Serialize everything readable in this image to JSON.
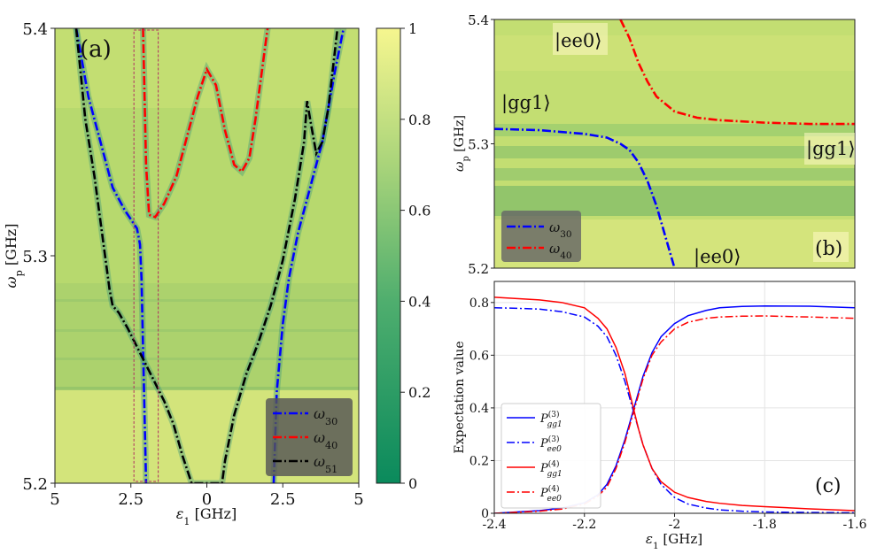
{
  "chart_data": [
    {
      "panel": "a",
      "type": "heatmap",
      "label": "(a)",
      "xlabel": "ε1 [GHz]",
      "ylabel": "ωp [GHz]",
      "xlim": [
        -5,
        5
      ],
      "ylim": [
        5.2,
        5.4
      ],
      "xticks": [
        -5,
        -2.5,
        0,
        2.5,
        5
      ],
      "xtick_labels": [
        "5",
        "2.5",
        "0",
        "2.5",
        "5"
      ],
      "yticks": [
        5.2,
        5.3,
        5.4
      ],
      "ytick_labels": [
        "5.2",
        "5.3",
        "5.4"
      ],
      "colorbar": {
        "range": [
          0,
          1
        ],
        "ticks": [
          0,
          0.2,
          0.4,
          0.6,
          0.8,
          1
        ],
        "tick_labels": [
          "0",
          "0.2",
          "0.4",
          "0.6",
          "0.8",
          "1"
        ],
        "color_low": "#0a8a5c",
        "color_high": "#f6f68f"
      },
      "highlight_box": {
        "x_range": [
          -2.4,
          -1.6
        ],
        "y_range": [
          5.2,
          5.4
        ]
      },
      "series": [
        {
          "name": "ω30",
          "color": "#0000ff",
          "x": [
            -4.3,
            -3.9,
            -3.5,
            -3.1,
            -2.7,
            -2.3,
            -2.2,
            -2.15,
            -2.1,
            -2.05,
            -2.0
          ],
          "y": [
            5.4,
            5.37,
            5.35,
            5.33,
            5.32,
            5.312,
            5.305,
            5.29,
            5.26,
            5.23,
            5.2
          ]
        },
        {
          "name": "ω30",
          "color": "#0000ff",
          "x": [
            2.2,
            2.3,
            2.5,
            2.7,
            3.0,
            3.4,
            3.8,
            4.2,
            4.5
          ],
          "y": [
            5.2,
            5.24,
            5.27,
            5.29,
            5.31,
            5.33,
            5.35,
            5.38,
            5.4
          ]
        },
        {
          "name": "ω40",
          "color": "#ff0000",
          "x": [
            -2.1,
            -2.05,
            -2.0,
            -1.9,
            -1.7,
            -1.4,
            -1.0,
            -0.6,
            -0.3,
            0.0,
            0.3,
            0.6,
            0.9,
            1.15,
            1.4,
            1.6,
            1.8,
            2.0
          ],
          "y": [
            5.4,
            5.37,
            5.34,
            5.318,
            5.317,
            5.323,
            5.335,
            5.355,
            5.37,
            5.382,
            5.375,
            5.355,
            5.34,
            5.337,
            5.343,
            5.36,
            5.38,
            5.4
          ]
        },
        {
          "name": "ω51",
          "color": "#000000",
          "x": [
            -4.3,
            -4.0,
            -3.7,
            -3.4,
            -3.2,
            -3.1,
            -2.9,
            -2.6,
            -2.3,
            -2.0,
            -1.7,
            -1.4,
            -1.1,
            -0.8,
            -0.6,
            -0.5,
            0.5,
            0.6,
            0.9,
            1.3,
            1.7,
            2.1,
            2.5,
            2.9,
            3.2,
            3.3,
            3.4,
            3.6,
            3.8,
            4.0,
            4.3
          ],
          "y": [
            5.4,
            5.36,
            5.335,
            5.305,
            5.285,
            5.278,
            5.275,
            5.268,
            5.26,
            5.252,
            5.244,
            5.236,
            5.226,
            5.212,
            5.204,
            5.2,
            5.2,
            5.21,
            5.23,
            5.248,
            5.262,
            5.278,
            5.298,
            5.325,
            5.35,
            5.368,
            5.36,
            5.345,
            5.35,
            5.365,
            5.4
          ]
        }
      ]
    },
    {
      "panel": "b",
      "type": "heatmap",
      "label": "(b)",
      "ylabel": "ωp [GHz]",
      "xlim": [
        -2.4,
        -1.6
      ],
      "ylim": [
        5.2,
        5.4
      ],
      "yticks": [
        5.2,
        5.3,
        5.4
      ],
      "ytick_labels": [
        "5.2",
        "5.3",
        "5.4"
      ],
      "annotations": [
        "|ee0⟩",
        "|gg1⟩",
        "|gg1⟩",
        "|ee0⟩"
      ],
      "series": [
        {
          "name": "ω30",
          "color": "#0000ff",
          "x": [
            -2.4,
            -2.3,
            -2.2,
            -2.15,
            -2.12,
            -2.1,
            -2.08,
            -2.06,
            -2.04,
            -2.02,
            -2.0
          ],
          "y": [
            5.312,
            5.311,
            5.308,
            5.305,
            5.3,
            5.295,
            5.285,
            5.27,
            5.25,
            5.225,
            5.2
          ]
        },
        {
          "name": "ω40",
          "color": "#ff0000",
          "x": [
            -2.12,
            -2.1,
            -2.08,
            -2.06,
            -2.04,
            -2.0,
            -1.95,
            -1.9,
            -1.8,
            -1.7,
            -1.6
          ],
          "y": [
            5.4,
            5.385,
            5.365,
            5.35,
            5.338,
            5.326,
            5.321,
            5.319,
            5.317,
            5.316,
            5.316
          ]
        }
      ]
    },
    {
      "panel": "c",
      "type": "line",
      "label": "(c)",
      "xlabel": "ε1 [GHz]",
      "ylabel": "Expectation value",
      "xlim": [
        -2.4,
        -1.6
      ],
      "ylim": [
        0,
        0.88
      ],
      "xticks": [
        -2.4,
        -2.2,
        -2.0,
        -1.8,
        -1.6
      ],
      "xtick_labels": [
        "-2.4",
        "-2.2",
        "-2",
        "-1.8",
        "-1.6"
      ],
      "yticks": [
        0,
        0.2,
        0.4,
        0.6,
        0.8
      ],
      "ytick_labels": [
        "0",
        "0.2",
        "0.4",
        "0.6",
        "0.8"
      ],
      "x": [
        -2.4,
        -2.35,
        -2.3,
        -2.25,
        -2.2,
        -2.17,
        -2.15,
        -2.13,
        -2.11,
        -2.1,
        -2.09,
        -2.08,
        -2.07,
        -2.05,
        -2.03,
        -2.0,
        -1.97,
        -1.93,
        -1.9,
        -1.85,
        -1.8,
        -1.7,
        -1.6
      ],
      "series": [
        {
          "name": "P(3) gg1",
          "color": "#0000ff",
          "dash": "solid",
          "values": [
            0.0,
            0.005,
            0.01,
            0.02,
            0.04,
            0.07,
            0.11,
            0.18,
            0.28,
            0.34,
            0.4,
            0.46,
            0.52,
            0.61,
            0.67,
            0.72,
            0.75,
            0.77,
            0.78,
            0.785,
            0.787,
            0.786,
            0.78
          ]
        },
        {
          "name": "P(3) ee0",
          "color": "#0000ff",
          "dash": "dashdot",
          "values": [
            0.78,
            0.778,
            0.775,
            0.765,
            0.745,
            0.71,
            0.67,
            0.6,
            0.5,
            0.44,
            0.38,
            0.32,
            0.26,
            0.17,
            0.11,
            0.06,
            0.035,
            0.02,
            0.013,
            0.008,
            0.005,
            0.003,
            0.002
          ]
        },
        {
          "name": "P(4) gg1",
          "color": "#ff0000",
          "dash": "solid",
          "values": [
            0.82,
            0.815,
            0.81,
            0.8,
            0.78,
            0.74,
            0.7,
            0.63,
            0.53,
            0.46,
            0.39,
            0.32,
            0.26,
            0.17,
            0.12,
            0.08,
            0.06,
            0.045,
            0.038,
            0.03,
            0.025,
            0.017,
            0.01
          ]
        },
        {
          "name": "P(4) ee0",
          "color": "#ff0000",
          "dash": "dashdot",
          "values": [
            0.0,
            0.004,
            0.008,
            0.016,
            0.035,
            0.065,
            0.1,
            0.17,
            0.27,
            0.33,
            0.39,
            0.45,
            0.51,
            0.6,
            0.65,
            0.7,
            0.725,
            0.74,
            0.745,
            0.748,
            0.749,
            0.745,
            0.74
          ]
        }
      ]
    }
  ]
}
